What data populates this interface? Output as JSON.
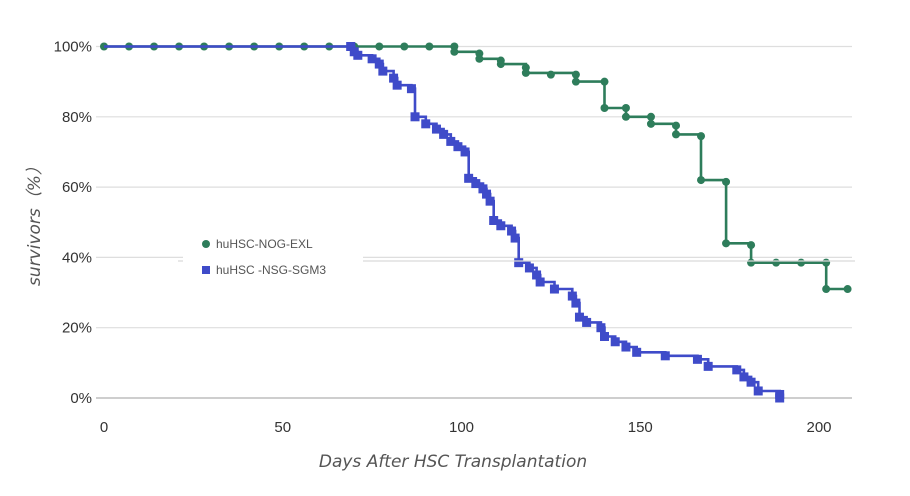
{
  "chart_data": {
    "type": "line",
    "xlabel": "Days After HSC Transplantation",
    "ylabel": "survivors（%）",
    "xlim": [
      0,
      208
    ],
    "ylim": [
      0,
      100
    ],
    "x_ticks": [
      0,
      50,
      100,
      150,
      200
    ],
    "y_ticks": [
      0,
      20,
      40,
      60,
      80,
      100
    ],
    "y_tick_labels": [
      "0%",
      "20%",
      "40%",
      "60%",
      "80%",
      "100%"
    ],
    "grid": "horizontal",
    "legend_position": "center-left",
    "series": [
      {
        "name": "huHSC-NOG-EXL",
        "color": "#2e7d5b",
        "marker": "circle",
        "steps": [
          [
            0,
            100
          ],
          [
            98,
            98.5
          ],
          [
            105,
            96.5
          ],
          [
            111,
            95
          ],
          [
            118,
            92.5
          ],
          [
            132,
            90
          ],
          [
            140,
            82.5
          ],
          [
            146,
            80
          ],
          [
            153,
            78
          ],
          [
            160,
            75
          ],
          [
            167,
            62
          ],
          [
            174,
            44
          ],
          [
            181,
            38.5
          ],
          [
            202,
            31
          ],
          [
            208,
            31
          ]
        ],
        "markers": [
          [
            0,
            100
          ],
          [
            7,
            100
          ],
          [
            14,
            100
          ],
          [
            21,
            100
          ],
          [
            28,
            100
          ],
          [
            35,
            100
          ],
          [
            42,
            100
          ],
          [
            49,
            100
          ],
          [
            56,
            100
          ],
          [
            63,
            100
          ],
          [
            70,
            100
          ],
          [
            77,
            100
          ],
          [
            84,
            100
          ],
          [
            91,
            100
          ],
          [
            98,
            100
          ],
          [
            98,
            98.5
          ],
          [
            105,
            98
          ],
          [
            105,
            96.5
          ],
          [
            111,
            96
          ],
          [
            111,
            95
          ],
          [
            118,
            94
          ],
          [
            118,
            92.5
          ],
          [
            125,
            92
          ],
          [
            132,
            92
          ],
          [
            132,
            90
          ],
          [
            140,
            90
          ],
          [
            140,
            82.5
          ],
          [
            146,
            82.5
          ],
          [
            146,
            80
          ],
          [
            153,
            80
          ],
          [
            153,
            78
          ],
          [
            160,
            77.5
          ],
          [
            160,
            75
          ],
          [
            167,
            74.5
          ],
          [
            167,
            62
          ],
          [
            174,
            61.5
          ],
          [
            174,
            44
          ],
          [
            181,
            43.5
          ],
          [
            181,
            38.5
          ],
          [
            188,
            38.5
          ],
          [
            195,
            38.5
          ],
          [
            202,
            38.5
          ],
          [
            202,
            31
          ],
          [
            208,
            31
          ]
        ]
      },
      {
        "name": "huHSC -NSG-SGM3",
        "color": "#3f4bc9",
        "marker": "square",
        "steps": [
          [
            0,
            100
          ],
          [
            69,
            100
          ],
          [
            70,
            98.5
          ],
          [
            71,
            97.5
          ],
          [
            75,
            96.5
          ],
          [
            77,
            95
          ],
          [
            78,
            93
          ],
          [
            81,
            91
          ],
          [
            82,
            89
          ],
          [
            86,
            88
          ],
          [
            87,
            80
          ],
          [
            90,
            78
          ],
          [
            93,
            76.5
          ],
          [
            95,
            75
          ],
          [
            97,
            73
          ],
          [
            99,
            71.5
          ],
          [
            101,
            70
          ],
          [
            102,
            62.5
          ],
          [
            104,
            61
          ],
          [
            106,
            59.5
          ],
          [
            107,
            58
          ],
          [
            108,
            56
          ],
          [
            109,
            50.5
          ],
          [
            111,
            49
          ],
          [
            114,
            47.5
          ],
          [
            115,
            45.5
          ],
          [
            116,
            38.5
          ],
          [
            119,
            37
          ],
          [
            121,
            35
          ],
          [
            122,
            33
          ],
          [
            126,
            31
          ],
          [
            131,
            29
          ],
          [
            132,
            27
          ],
          [
            133,
            23
          ],
          [
            135,
            21.5
          ],
          [
            139,
            20
          ],
          [
            140,
            17.5
          ],
          [
            143,
            16
          ],
          [
            146,
            14.5
          ],
          [
            149,
            13
          ],
          [
            157,
            12
          ],
          [
            166,
            11
          ],
          [
            169,
            9
          ],
          [
            177,
            8
          ],
          [
            179,
            6
          ],
          [
            181,
            4.5
          ],
          [
            183,
            2
          ],
          [
            189,
            1
          ],
          [
            189,
            0
          ]
        ],
        "markers": [
          [
            69,
            100
          ],
          [
            70,
            98.5
          ],
          [
            71,
            97.5
          ],
          [
            75,
            96.5
          ],
          [
            77,
            95
          ],
          [
            78,
            93
          ],
          [
            81,
            91
          ],
          [
            82,
            89
          ],
          [
            86,
            88
          ],
          [
            87,
            80
          ],
          [
            90,
            78
          ],
          [
            93,
            76.5
          ],
          [
            95,
            75
          ],
          [
            97,
            73
          ],
          [
            99,
            71.5
          ],
          [
            101,
            70
          ],
          [
            102,
            62.5
          ],
          [
            104,
            61
          ],
          [
            106,
            59.5
          ],
          [
            107,
            58
          ],
          [
            108,
            56
          ],
          [
            109,
            50.5
          ],
          [
            111,
            49
          ],
          [
            114,
            47.5
          ],
          [
            115,
            45.5
          ],
          [
            116,
            38.5
          ],
          [
            119,
            37
          ],
          [
            121,
            35
          ],
          [
            122,
            33
          ],
          [
            126,
            31
          ],
          [
            131,
            29
          ],
          [
            132,
            27
          ],
          [
            133,
            23
          ],
          [
            135,
            21.5
          ],
          [
            139,
            20
          ],
          [
            140,
            17.5
          ],
          [
            143,
            16
          ],
          [
            146,
            14.5
          ],
          [
            149,
            13
          ],
          [
            157,
            12
          ],
          [
            166,
            11
          ],
          [
            169,
            9
          ],
          [
            177,
            8
          ],
          [
            179,
            6
          ],
          [
            181,
            4.5
          ],
          [
            183,
            2
          ],
          [
            189,
            1
          ],
          [
            189,
            0
          ]
        ]
      }
    ]
  }
}
